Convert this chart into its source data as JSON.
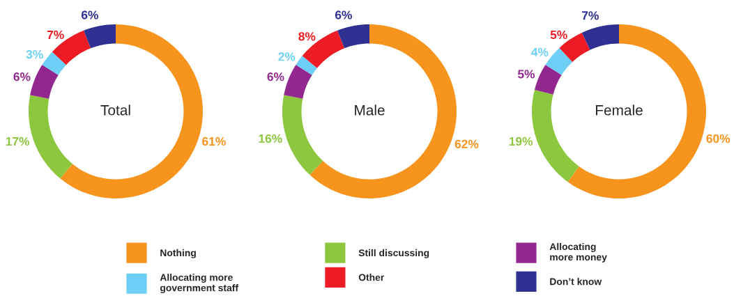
{
  "chart_data": [
    {
      "type": "donut",
      "title": "Total",
      "categories": [
        "Nothing",
        "Still discussing",
        "Allocating\nmore money",
        "Allocating more\ngovernment staff",
        "Other",
        "Don’t know"
      ],
      "values": [
        61,
        17,
        6,
        3,
        7,
        6
      ],
      "colors": [
        "#f7941d",
        "#8dc63f",
        "#92278f",
        "#6dcff6",
        "#ed1c24",
        "#2e3192"
      ],
      "value_labels": [
        "61%",
        "17%",
        "6%",
        "3%",
        "7%",
        "6%"
      ],
      "legend": "bottom"
    },
    {
      "type": "donut",
      "title": "Male",
      "categories": [
        null,
        null,
        null,
        null,
        null,
        null
      ],
      "values": [
        62,
        16,
        6,
        2,
        8,
        6
      ],
      "colors": [
        "#f7941d",
        "#8dc63f",
        "#92278f",
        "#6dcff6",
        "#ed1c24",
        "#2e3192"
      ],
      "value_labels": [
        "62%",
        "16%",
        "6%",
        "2%",
        "8%",
        "6%"
      ]
    },
    {
      "type": "donut",
      "title": "Female",
      "categories": [
        null,
        null,
        null,
        null,
        null,
        null
      ],
      "values": [
        60,
        19,
        5,
        4,
        5,
        7
      ],
      "colors": [
        "#f7941d",
        "#8dc63f",
        "#92278f",
        "#6dcff6",
        "#ed1c24",
        "#2e3192"
      ],
      "value_labels": [
        "60%",
        "19%",
        "5%",
        "4%",
        "5%",
        "7%"
      ]
    }
  ]
}
